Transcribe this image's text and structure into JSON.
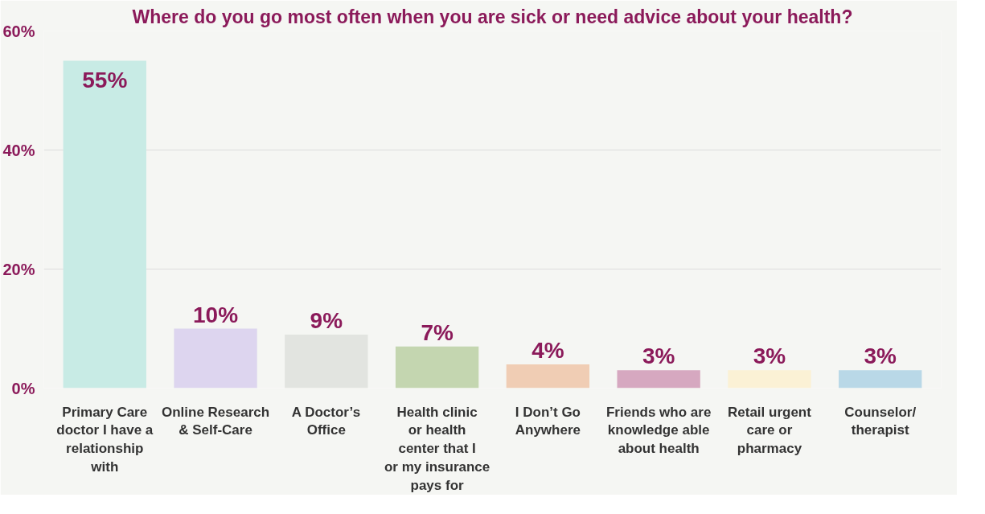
{
  "chart_data": {
    "type": "bar",
    "title": "Where do you go most often when you are sick or need advice about your health?",
    "categories": [
      "Primary Care doctor I have a relationship with",
      "Online Research & Self-Care",
      "A Doctor’s Office",
      "Health clinic or health center that I or my insurance pays for",
      "I Don’t Go Anywhere",
      "Friends who are knowledge able about health",
      "Retail urgent care or pharmacy",
      "Counselor/ therapist"
    ],
    "values": [
      55,
      10,
      9,
      7,
      4,
      3,
      3,
      3
    ],
    "value_labels": [
      "55%",
      "10%",
      "9%",
      "7%",
      "4%",
      "3%",
      "3%",
      "3%"
    ],
    "colors": [
      "#c8ebe5",
      "#ddd5ef",
      "#e2e4e0",
      "#c4d6b0",
      "#f0cdb4",
      "#d6a8c0",
      "#fbf1d5",
      "#b9d8e7"
    ],
    "ylim": [
      0,
      60
    ],
    "yticks": [
      {
        "value": 0,
        "label": "0%"
      },
      {
        "value": 20,
        "label": "20%"
      },
      {
        "value": 40,
        "label": "40%"
      },
      {
        "value": 60,
        "label": "60%"
      }
    ],
    "grid": "y"
  }
}
